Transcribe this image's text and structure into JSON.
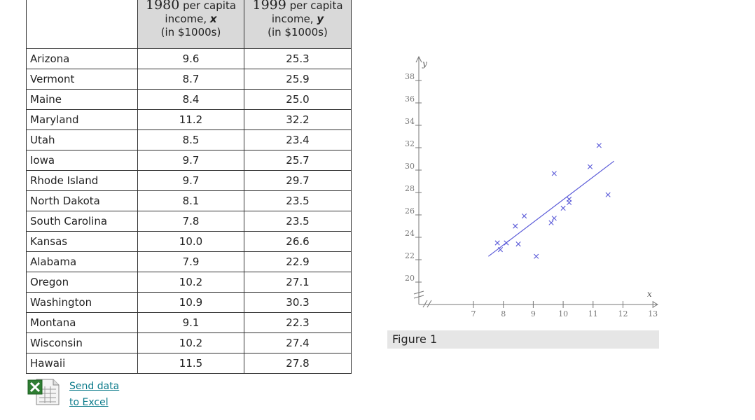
{
  "table": {
    "header_x_year": "1980",
    "header_x_top": "per capita",
    "header_x_line1": "income,",
    "header_x_var": "x",
    "header_x_line2": "(in $1000s)",
    "header_y_year": "1999",
    "header_y_top": "per capita",
    "header_y_line1": "income,",
    "header_y_var": "y",
    "header_y_line2": "(in $1000s)",
    "rows": [
      {
        "state": "Arizona",
        "x": "9.6",
        "y": "25.3"
      },
      {
        "state": "Vermont",
        "x": "8.7",
        "y": "25.9"
      },
      {
        "state": "Maine",
        "x": "8.4",
        "y": "25.0"
      },
      {
        "state": "Maryland",
        "x": "11.2",
        "y": "32.2"
      },
      {
        "state": "Utah",
        "x": "8.5",
        "y": "23.4"
      },
      {
        "state": "Iowa",
        "x": "9.7",
        "y": "25.7"
      },
      {
        "state": "Rhode Island",
        "x": "9.7",
        "y": "29.7"
      },
      {
        "state": "North Dakota",
        "x": "8.1",
        "y": "23.5"
      },
      {
        "state": "South Carolina",
        "x": "7.8",
        "y": "23.5"
      },
      {
        "state": "Kansas",
        "x": "10.0",
        "y": "26.6"
      },
      {
        "state": "Alabama",
        "x": "7.9",
        "y": "22.9"
      },
      {
        "state": "Oregon",
        "x": "10.2",
        "y": "27.1"
      },
      {
        "state": "Washington",
        "x": "10.9",
        "y": "30.3"
      },
      {
        "state": "Montana",
        "x": "9.1",
        "y": "22.3"
      },
      {
        "state": "Wisconsin",
        "x": "10.2",
        "y": "27.4"
      },
      {
        "state": "Hawaii",
        "x": "11.5",
        "y": "27.8"
      }
    ]
  },
  "excel": {
    "link_line1": "Send data",
    "link_line2": "to Excel",
    "icon": "excel-icon"
  },
  "caption": "Figure 1",
  "colors": {
    "marker": "#5a5ad8",
    "axis": "#777777",
    "header_bg": "#d9d9d9",
    "caption_bg": "#e6e6e6",
    "link": "#0a7a8a"
  },
  "chart_data": {
    "type": "scatter",
    "title": "",
    "xlabel": "x",
    "ylabel": "y",
    "xlim": [
      6,
      14
    ],
    "ylim": [
      18,
      40
    ],
    "x_ticks": [
      7,
      8,
      9,
      10,
      11,
      12,
      13
    ],
    "y_ticks": [
      20,
      22,
      24,
      26,
      28,
      30,
      32,
      34,
      36,
      38
    ],
    "axis_breaks": true,
    "grid": false,
    "marker": "x",
    "points": [
      {
        "x": 9.6,
        "y": 25.3
      },
      {
        "x": 8.7,
        "y": 25.9
      },
      {
        "x": 8.4,
        "y": 25.0
      },
      {
        "x": 11.2,
        "y": 32.2
      },
      {
        "x": 8.5,
        "y": 23.4
      },
      {
        "x": 9.7,
        "y": 25.7
      },
      {
        "x": 9.7,
        "y": 29.7
      },
      {
        "x": 8.1,
        "y": 23.5
      },
      {
        "x": 7.8,
        "y": 23.5
      },
      {
        "x": 10.0,
        "y": 26.6
      },
      {
        "x": 7.9,
        "y": 22.9
      },
      {
        "x": 10.2,
        "y": 27.1
      },
      {
        "x": 10.9,
        "y": 30.3
      },
      {
        "x": 9.1,
        "y": 22.3
      },
      {
        "x": 10.2,
        "y": 27.4
      },
      {
        "x": 11.5,
        "y": 27.8
      }
    ],
    "regression_line": {
      "x": [
        7.5,
        11.7
      ],
      "y": [
        22.3,
        30.8
      ]
    }
  }
}
